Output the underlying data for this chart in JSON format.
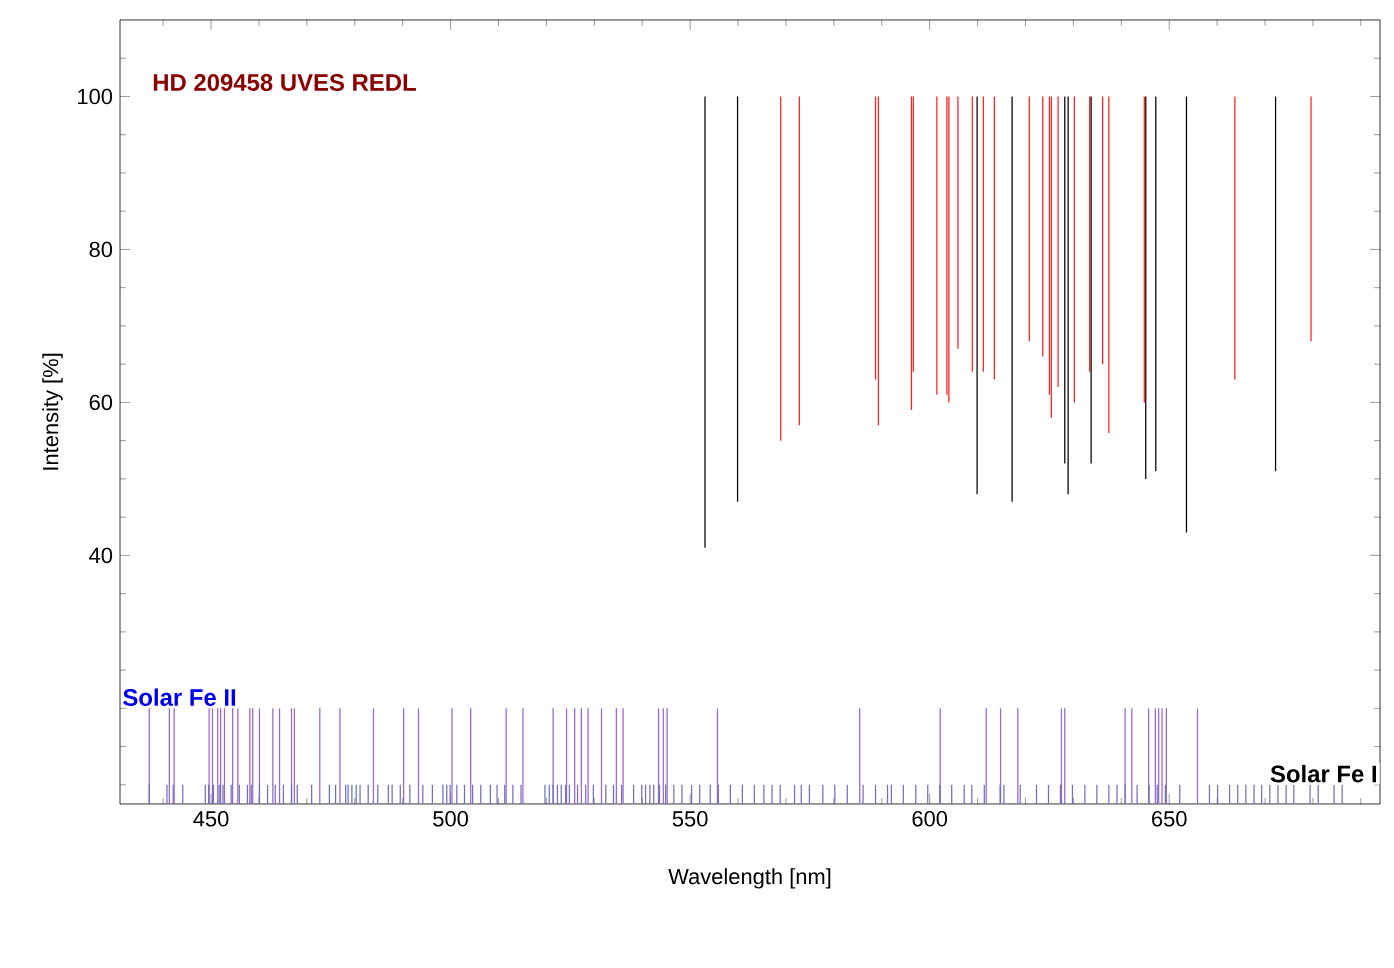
{
  "chart_data": {
    "type": "bar",
    "title": "HD 209458 UVES REDL",
    "xlabel": "Wavelength [nm]",
    "ylabel": "Intensity [%]",
    "xlim": [
      431,
      694
    ],
    "ylim": [
      7.5,
      110
    ],
    "xticks": [
      {
        "value": 440,
        "label": null
      },
      450,
      {
        "value": 460,
        "label": null
      },
      {
        "value": 470,
        "label": null
      },
      {
        "value": 480,
        "label": null
      },
      {
        "value": 490,
        "label": null
      },
      500,
      {
        "value": 510,
        "label": null
      },
      {
        "value": 520,
        "label": null
      },
      {
        "value": 530,
        "label": null
      },
      {
        "value": 540,
        "label": null
      },
      550,
      {
        "value": 560,
        "label": null
      },
      {
        "value": 570,
        "label": null
      },
      {
        "value": 580,
        "label": null
      },
      {
        "value": 590,
        "label": null
      },
      600,
      {
        "value": 610,
        "label": null
      },
      {
        "value": 620,
        "label": null
      },
      {
        "value": 630,
        "label": null
      },
      {
        "value": 640,
        "label": null
      },
      650,
      {
        "value": 660,
        "label": null
      },
      {
        "value": 670,
        "label": null
      },
      {
        "value": 680,
        "label": null
      },
      {
        "value": 690,
        "label": null
      }
    ],
    "yticks": [
      {
        "value": 10,
        "label": null
      },
      {
        "value": 15,
        "label": null
      },
      {
        "value": 20,
        "label": null
      },
      {
        "value": 25,
        "label": null
      },
      {
        "value": 30,
        "label": null
      },
      {
        "value": 35,
        "label": null
      },
      40,
      {
        "value": 45,
        "label": null
      },
      {
        "value": 50,
        "label": null
      },
      {
        "value": 55,
        "label": null
      },
      60,
      {
        "value": 65,
        "label": null
      },
      {
        "value": 70,
        "label": null
      },
      {
        "value": 75,
        "label": null
      },
      80,
      {
        "value": 85,
        "label": null
      },
      {
        "value": 90,
        "label": null
      },
      {
        "value": 95,
        "label": null
      },
      100,
      {
        "value": 105,
        "label": null
      }
    ],
    "series": [
      {
        "color": "#ff2020",
        "x": [
          568.9,
          572.8,
          588.7,
          589.3,
          596.2,
          596.6,
          601.5,
          603.6,
          604.0,
          605.9,
          608.9,
          611.2,
          613.5,
          620.8,
          623.6,
          625.0,
          625.4,
          626.8,
          630.2,
          633.4,
          636.1,
          637.4,
          644.8,
          663.7,
          679.6
        ],
        "base": [
          100,
          100,
          100,
          100,
          100,
          100,
          100,
          100,
          100,
          100,
          100,
          100,
          100,
          100,
          100,
          100,
          100,
          100,
          100,
          100,
          100,
          100,
          100,
          100,
          100
        ],
        "values": [
          -45,
          -43,
          -37,
          -43,
          -41,
          -36,
          -39,
          -39,
          -40,
          -33,
          -36,
          -36,
          -37,
          -32,
          -34,
          -39,
          -42,
          -38,
          -40,
          -36,
          -35,
          -44,
          -40,
          -37,
          -32
        ]
      },
      {
        "color": "#000000",
        "x": [
          553.1,
          559.9,
          609.9,
          617.2,
          628.2,
          628.9,
          633.7,
          645.1,
          647.2,
          653.6,
          672.2
        ],
        "base": [
          100,
          100,
          100,
          100,
          100,
          100,
          100,
          100,
          100,
          100,
          100
        ],
        "values": [
          -59,
          -53,
          -52,
          -53,
          -48,
          -52,
          -48,
          -50,
          -49,
          -57,
          -49
        ]
      },
      {
        "name": "Solar Fe II",
        "color": "#9966cc",
        "x": [
          437.1,
          441.3,
          442.3,
          449.6,
          450.3,
          451.4,
          452.0,
          452.8,
          454.5,
          455.6,
          458.1,
          458.7,
          460.1,
          462.9,
          464.3,
          466.8,
          467.4,
          472.7,
          476.9,
          483.9,
          490.2,
          493.3,
          500.3,
          504.2,
          511.6,
          515.1,
          521.4,
          524.2,
          525.9,
          527.3,
          528.7,
          531.5,
          534.6,
          536.0,
          543.4,
          544.4,
          545.2,
          555.7,
          585.4,
          602.2,
          611.8,
          614.8,
          618.4,
          627.5,
          628.2,
          640.8,
          642.2,
          645.7,
          647.1,
          647.8,
          648.5,
          649.4,
          655.9
        ],
        "values": [
          20,
          20,
          20,
          20,
          20,
          20,
          20,
          20,
          20,
          20,
          20,
          20,
          20,
          20,
          20,
          20,
          20,
          20,
          20,
          20,
          20,
          20,
          20,
          20,
          20,
          20,
          20,
          20,
          20,
          20,
          20,
          20,
          20,
          20,
          20,
          20,
          20,
          20,
          20,
          20,
          20,
          20,
          20,
          20,
          20,
          20,
          20,
          20,
          20,
          20,
          20,
          20,
          20
        ]
      },
      {
        "name": "Solar Fe I",
        "color": "#7070c0",
        "x": [
          437.1,
          440.8,
          442.1,
          444.1,
          448.8,
          449.5,
          450.5,
          451.7,
          452.5,
          454.2,
          455.9,
          457.6,
          458.4,
          460.1,
          461.8,
          463.4,
          465.1,
          466.8,
          468.0,
          471.0,
          474.7,
          476.0,
          478.1,
          478.6,
          479.4,
          480.3,
          481.1,
          482.8,
          484.8,
          487.0,
          487.8,
          489.5,
          491.5,
          494.2,
          496.2,
          498.4,
          499.2,
          499.9,
          501.3,
          502.9,
          504.6,
          506.3,
          508.3,
          509.7,
          511.3,
          513.0,
          514.7,
          519.7,
          520.6,
          521.4,
          522.3,
          523.1,
          524.0,
          524.8,
          526.5,
          528.2,
          529.8,
          532.4,
          534.0,
          535.7,
          538.2,
          539.9,
          540.7,
          541.6,
          542.4,
          543.6,
          544.9,
          546.6,
          548.3,
          550.3,
          552.0,
          554.2,
          555.9,
          558.4,
          560.9,
          563.4,
          565.4,
          567.1,
          568.8,
          571.8,
          573.2,
          574.9,
          577.7,
          580.2,
          582.8,
          586.1,
          588.7,
          591.2,
          592.0,
          594.5,
          597.1,
          599.6,
          602.1,
          604.6,
          607.2,
          608.8,
          611.4,
          614.7,
          615.5,
          618.9,
          622.3,
          624.8,
          627.3,
          629.8,
          632.4,
          634.9,
          637.4,
          639.1,
          640.8,
          643.3,
          645.8,
          647.5,
          649.2,
          652.2,
          658.4,
          660.1,
          662.6,
          664.3,
          666.0,
          667.7,
          669.3,
          671.0,
          672.7,
          674.4,
          676.0,
          679.4,
          681.1,
          684.4,
          686.1
        ],
        "values": [
          10,
          10,
          10,
          10,
          10,
          10,
          10,
          10,
          10,
          10,
          10,
          10,
          10,
          10,
          10,
          10,
          10,
          10,
          10,
          10,
          10,
          10,
          10,
          10,
          10,
          10,
          10,
          10,
          10,
          10,
          10,
          10,
          10,
          10,
          10,
          10,
          10,
          10,
          10,
          10,
          10,
          10,
          10,
          10,
          10,
          10,
          10,
          10,
          10,
          10,
          10,
          10,
          10,
          10,
          10,
          10,
          10,
          10,
          10,
          10,
          10,
          10,
          10,
          10,
          10,
          10,
          10,
          10,
          10,
          10,
          10,
          10,
          10,
          10,
          10,
          10,
          10,
          10,
          10,
          10,
          10,
          10,
          10,
          10,
          10,
          10,
          10,
          10,
          10,
          10,
          10,
          10,
          10,
          10,
          10,
          10,
          10,
          10,
          10,
          10,
          10,
          10,
          10,
          10,
          10,
          10,
          10,
          10,
          10,
          10,
          10,
          10,
          10,
          10,
          10,
          10,
          10,
          10,
          10,
          10,
          10,
          10,
          10,
          10,
          10,
          10,
          10,
          10,
          10
        ]
      }
    ]
  }
}
